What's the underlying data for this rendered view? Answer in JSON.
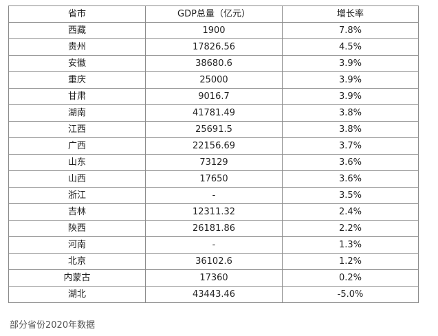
{
  "table": {
    "headers": [
      "省市",
      "GDP总量（亿元）",
      "增长率"
    ],
    "rows": [
      [
        "西藏",
        "1900",
        "7.8%"
      ],
      [
        "贵州",
        "17826.56",
        "4.5%"
      ],
      [
        "安徽",
        "38680.6",
        "3.9%"
      ],
      [
        "重庆",
        "25000",
        "3.9%"
      ],
      [
        "甘肃",
        "9016.7",
        "3.9%"
      ],
      [
        "湖南",
        "41781.49",
        "3.8%"
      ],
      [
        "江西",
        "25691.5",
        "3.8%"
      ],
      [
        "广西",
        "22156.69",
        "3.7%"
      ],
      [
        "山东",
        "73129",
        "3.6%"
      ],
      [
        "山西",
        "17650",
        "3.6%"
      ],
      [
        "浙江",
        "-",
        "3.5%"
      ],
      [
        "吉林",
        "12311.32",
        "2.4%"
      ],
      [
        "陕西",
        "26181.86",
        "2.2%"
      ],
      [
        "河南",
        "-",
        "1.3%"
      ],
      [
        "北京",
        "36102.6",
        "1.2%"
      ],
      [
        "内蒙古",
        "17360",
        "0.2%"
      ],
      [
        "湖北",
        "43443.46",
        "-5.0%"
      ]
    ]
  },
  "caption": "部分省份2020年数据",
  "colors": {
    "border": "#8a8a8a",
    "text": "#222222",
    "caption": "#555555"
  }
}
